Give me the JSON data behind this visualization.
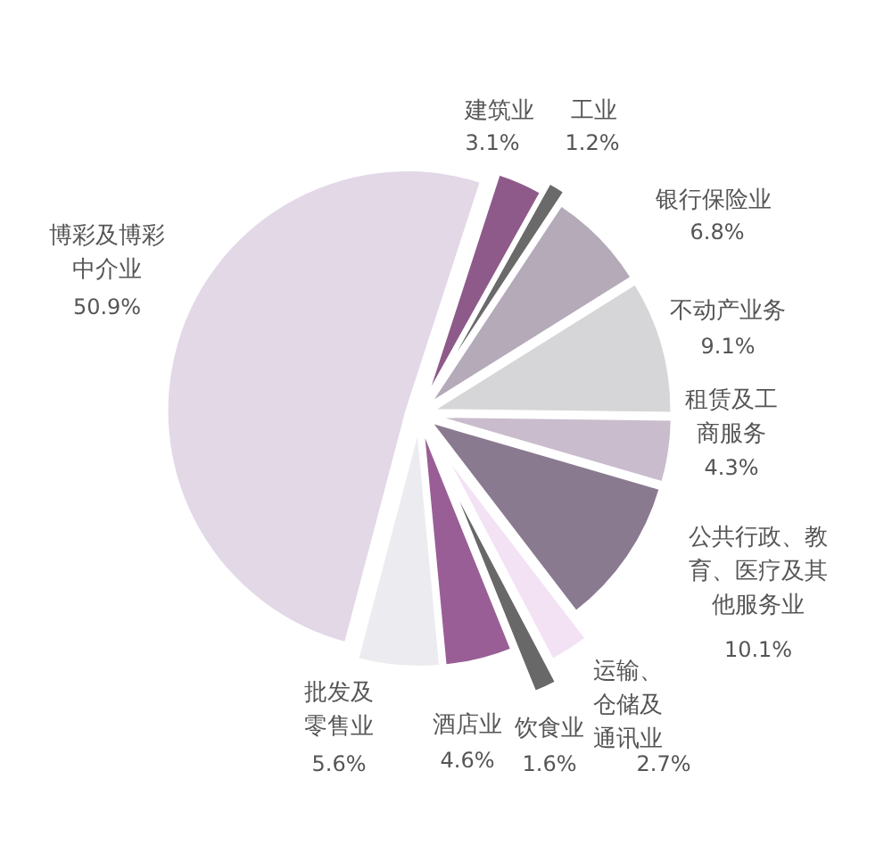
{
  "chart_data": {
    "type": "pie",
    "categories": [
      "建筑业",
      "工业",
      "银行保险业",
      "不动产业务",
      "租赁及工商服务",
      "公共行政、教育、医疗及其他服务业",
      "运输、仓储及通讯业",
      "饮食业",
      "酒店业",
      "批发及零售业",
      "博彩及博彩中介业"
    ],
    "values": [
      3.1,
      1.2,
      6.8,
      9.1,
      4.3,
      10.1,
      2.7,
      1.6,
      4.6,
      5.6,
      50.9
    ],
    "colors": [
      "#8e5a8a",
      "#6a6a6a",
      "#b4aab8",
      "#d6d6d8",
      "#c9bccd",
      "#8a7a90",
      "#f2e2f4",
      "#686868",
      "#9a5e96",
      "#ececf0",
      "#e2d8e6"
    ],
    "value_labels": [
      "3.1%",
      "1.2%",
      "6.8%",
      "9.1%",
      "4.3%",
      "10.1%",
      "2.7%",
      "1.6%",
      "4.6%",
      "5.6%",
      "50.9%"
    ]
  }
}
